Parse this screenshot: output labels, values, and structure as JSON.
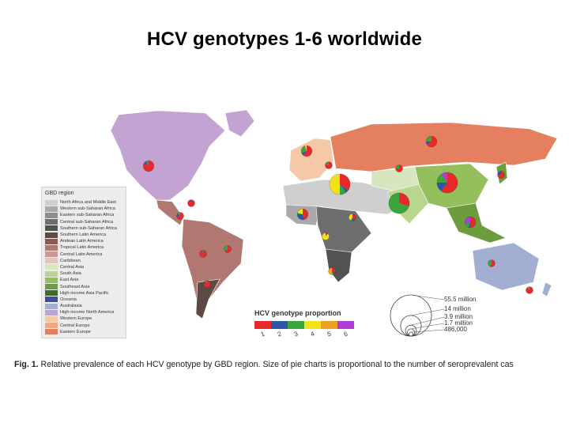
{
  "title": "HCV genotypes 1-6 worldwide",
  "legend": {
    "title": "GBD region",
    "regions": [
      {
        "label": "North Africa and Middle East",
        "color": "#cfcfcf"
      },
      {
        "label": "Western sub-Saharan Africa",
        "color": "#a9a9a9"
      },
      {
        "label": "Eastern sub-Saharan Africa",
        "color": "#8e8e8e"
      },
      {
        "label": "Central sub-Saharan Africa",
        "color": "#6e6e6e"
      },
      {
        "label": "Southern sub-Saharan Africa",
        "color": "#525252"
      },
      {
        "label": "Southern Latin America",
        "color": "#5b4a45"
      },
      {
        "label": "Andean Latin America",
        "color": "#8a5a55"
      },
      {
        "label": "Tropical Latin America",
        "color": "#b07870"
      },
      {
        "label": "Central Latin America",
        "color": "#c99a95"
      },
      {
        "label": "Caribbean",
        "color": "#e3c3c0"
      },
      {
        "label": "Central Asia",
        "color": "#d7e6bf"
      },
      {
        "label": "South Asia",
        "color": "#b9d68f"
      },
      {
        "label": "East Asia",
        "color": "#93bf5d"
      },
      {
        "label": "Southeast Asia",
        "color": "#6d9c3c"
      },
      {
        "label": "High-income Asia Pacific",
        "color": "#3e6a2a"
      },
      {
        "label": "Oceania",
        "color": "#3f4f8f"
      },
      {
        "label": "Australasia",
        "color": "#a3aed3"
      },
      {
        "label": "High-income North America",
        "color": "#c2a3d1"
      },
      {
        "label": "Western Europe",
        "color": "#f5c8a8"
      },
      {
        "label": "Central Europe",
        "color": "#f0a783"
      },
      {
        "label": "Eastern Europe",
        "color": "#e4805f"
      }
    ]
  },
  "genotype_legend": {
    "title": "HCV genotype proportion",
    "genotypes": [
      {
        "num": "1",
        "color": "#e8282a"
      },
      {
        "num": "2",
        "color": "#2e57a8"
      },
      {
        "num": "3",
        "color": "#3aa53a"
      },
      {
        "num": "4",
        "color": "#f2e21a"
      },
      {
        "num": "5",
        "color": "#eea020"
      },
      {
        "num": "6",
        "color": "#b03cd8"
      }
    ]
  },
  "size_legend": [
    {
      "label": "55.5 million"
    },
    {
      "label": "14 million"
    },
    {
      "label": "3.9 million"
    },
    {
      "label": "1.7 million"
    },
    {
      "label": "486,000"
    }
  ],
  "caption": {
    "lead": "Fig. 1.",
    "text": " Relative prevalence of each HCV genotype by GBD region. Size of pie charts is proportional to the number of seroprevalent cas"
  },
  "map_colors": {
    "north_america": "#c2a3d1",
    "latin_america": "#b07870",
    "south_latin": "#5b4a45",
    "europe_west": "#f5c8a8",
    "europe_east": "#e4805f",
    "mena": "#cfcfcf",
    "africa_west": "#a9a9a9",
    "africa_central": "#6e6e6e",
    "africa_south": "#525252",
    "central_asia": "#d7e6bf",
    "south_asia": "#b9d68f",
    "east_asia": "#93bf5d",
    "southeast_asia": "#6d9c3c",
    "australia": "#a3aed3"
  },
  "pies": [
    {
      "id": "north-america",
      "size_millions": 3.9,
      "shares": [
        0.85,
        0.07,
        0.08,
        0,
        0,
        0
      ]
    },
    {
      "id": "western-europe",
      "size_millions": 3.9,
      "shares": [
        0.6,
        0.1,
        0.25,
        0.05,
        0,
        0
      ]
    },
    {
      "id": "eastern-europe",
      "size_millions": 3.9,
      "shares": [
        0.65,
        0.1,
        0.25,
        0,
        0,
        0
      ]
    },
    {
      "id": "central-europe",
      "size_millions": 1.7,
      "shares": [
        0.8,
        0.05,
        0.15,
        0,
        0,
        0
      ]
    },
    {
      "id": "mena",
      "size_millions": 14,
      "shares": [
        0.35,
        0.05,
        0.1,
        0.5,
        0,
        0
      ]
    },
    {
      "id": "central-asia",
      "size_millions": 1.7,
      "shares": [
        0.7,
        0.05,
        0.25,
        0,
        0,
        0
      ]
    },
    {
      "id": "south-asia",
      "size_millions": 14,
      "shares": [
        0.3,
        0,
        0.7,
        0,
        0,
        0
      ]
    },
    {
      "id": "east-asia",
      "size_millions": 14,
      "shares": [
        0.6,
        0.15,
        0.15,
        0,
        0,
        0.1
      ]
    },
    {
      "id": "high-income-asia-pacific",
      "size_millions": 1.7,
      "shares": [
        0.75,
        0.25,
        0,
        0,
        0,
        0
      ]
    },
    {
      "id": "southeast-asia",
      "size_millions": 3.9,
      "shares": [
        0.5,
        0.05,
        0.15,
        0,
        0,
        0.3
      ]
    },
    {
      "id": "western-ssa",
      "size_millions": 3.9,
      "shares": [
        0.45,
        0.3,
        0.05,
        0.2,
        0,
        0
      ]
    },
    {
      "id": "eastern-ssa",
      "size_millions": 1.7,
      "shares": [
        0.4,
        0.1,
        0.1,
        0.4,
        0,
        0
      ]
    },
    {
      "id": "central-ssa",
      "size_millions": 1.7,
      "shares": [
        0.05,
        0.05,
        0,
        0.9,
        0,
        0
      ]
    },
    {
      "id": "southern-ssa",
      "size_millions": 0.486,
      "shares": [
        0.35,
        0.05,
        0.1,
        0,
        0.5,
        0
      ]
    },
    {
      "id": "central-latin-america",
      "size_millions": 1.7,
      "shares": [
        0.7,
        0.15,
        0.15,
        0,
        0,
        0
      ]
    },
    {
      "id": "caribbean",
      "size_millions": 0.486,
      "shares": [
        0.9,
        0.1,
        0,
        0,
        0,
        0
      ]
    },
    {
      "id": "andean-latin-america",
      "size_millions": 0.486,
      "shares": [
        0.9,
        0.05,
        0.05,
        0,
        0,
        0
      ]
    },
    {
      "id": "tropical-latin-america",
      "size_millions": 1.7,
      "shares": [
        0.6,
        0.05,
        0.35,
        0,
        0,
        0
      ]
    },
    {
      "id": "southern-latin-america",
      "size_millions": 0.486,
      "shares": [
        0.8,
        0.1,
        0.1,
        0,
        0,
        0
      ]
    },
    {
      "id": "australasia",
      "size_millions": 0.486,
      "shares": [
        0.5,
        0.05,
        0.45,
        0,
        0,
        0
      ]
    },
    {
      "id": "oceania",
      "size_millions": 0.486,
      "shares": [
        0.9,
        0,
        0.1,
        0,
        0,
        0
      ]
    }
  ]
}
